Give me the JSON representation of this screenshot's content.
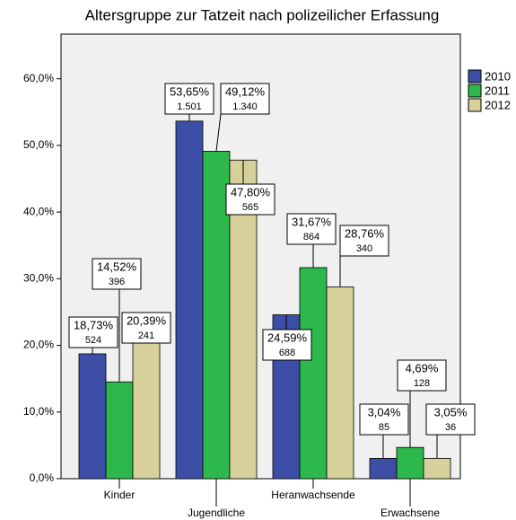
{
  "chart_data": {
    "type": "bar",
    "title": "Altersgruppe zur Tatzeit nach polizeilicher Erfassung",
    "categories": [
      "Kinder",
      "Jugendliche",
      "Heranwachsende",
      "Erwachsene"
    ],
    "series": [
      {
        "name": "2010",
        "color": "#3c4ea6",
        "values": [
          18.73,
          53.65,
          24.59,
          3.04
        ],
        "value_labels": [
          "18,73%",
          "53,65%",
          "24,59%",
          "3,04%"
        ],
        "count_labels": [
          "524",
          "1.501",
          "688",
          "85"
        ]
      },
      {
        "name": "2011",
        "color": "#2cb84a",
        "values": [
          14.52,
          49.12,
          31.67,
          4.69
        ],
        "value_labels": [
          "14,52%",
          "49,12%",
          "31,67%",
          "4,69%"
        ],
        "count_labels": [
          "396",
          "1.340",
          "864",
          "128"
        ]
      },
      {
        "name": "2012",
        "color": "#d6d09a",
        "values": [
          20.39,
          47.8,
          28.76,
          3.05
        ],
        "value_labels": [
          "20,39%",
          "47,80%",
          "28,76%",
          "3,05%"
        ],
        "count_labels": [
          "241",
          "565",
          "340",
          "36"
        ]
      }
    ],
    "ylim": [
      0,
      66.7
    ],
    "yticks": [
      {
        "value": 0,
        "label": "0,0%"
      },
      {
        "value": 10,
        "label": "10,0%"
      },
      {
        "value": 20,
        "label": "20,0%"
      },
      {
        "value": 30,
        "label": "30,0%"
      },
      {
        "value": 40,
        "label": "40,0%"
      },
      {
        "value": 50,
        "label": "50,0%"
      },
      {
        "value": 60,
        "label": "60,0%"
      }
    ],
    "legend": "top-right"
  }
}
